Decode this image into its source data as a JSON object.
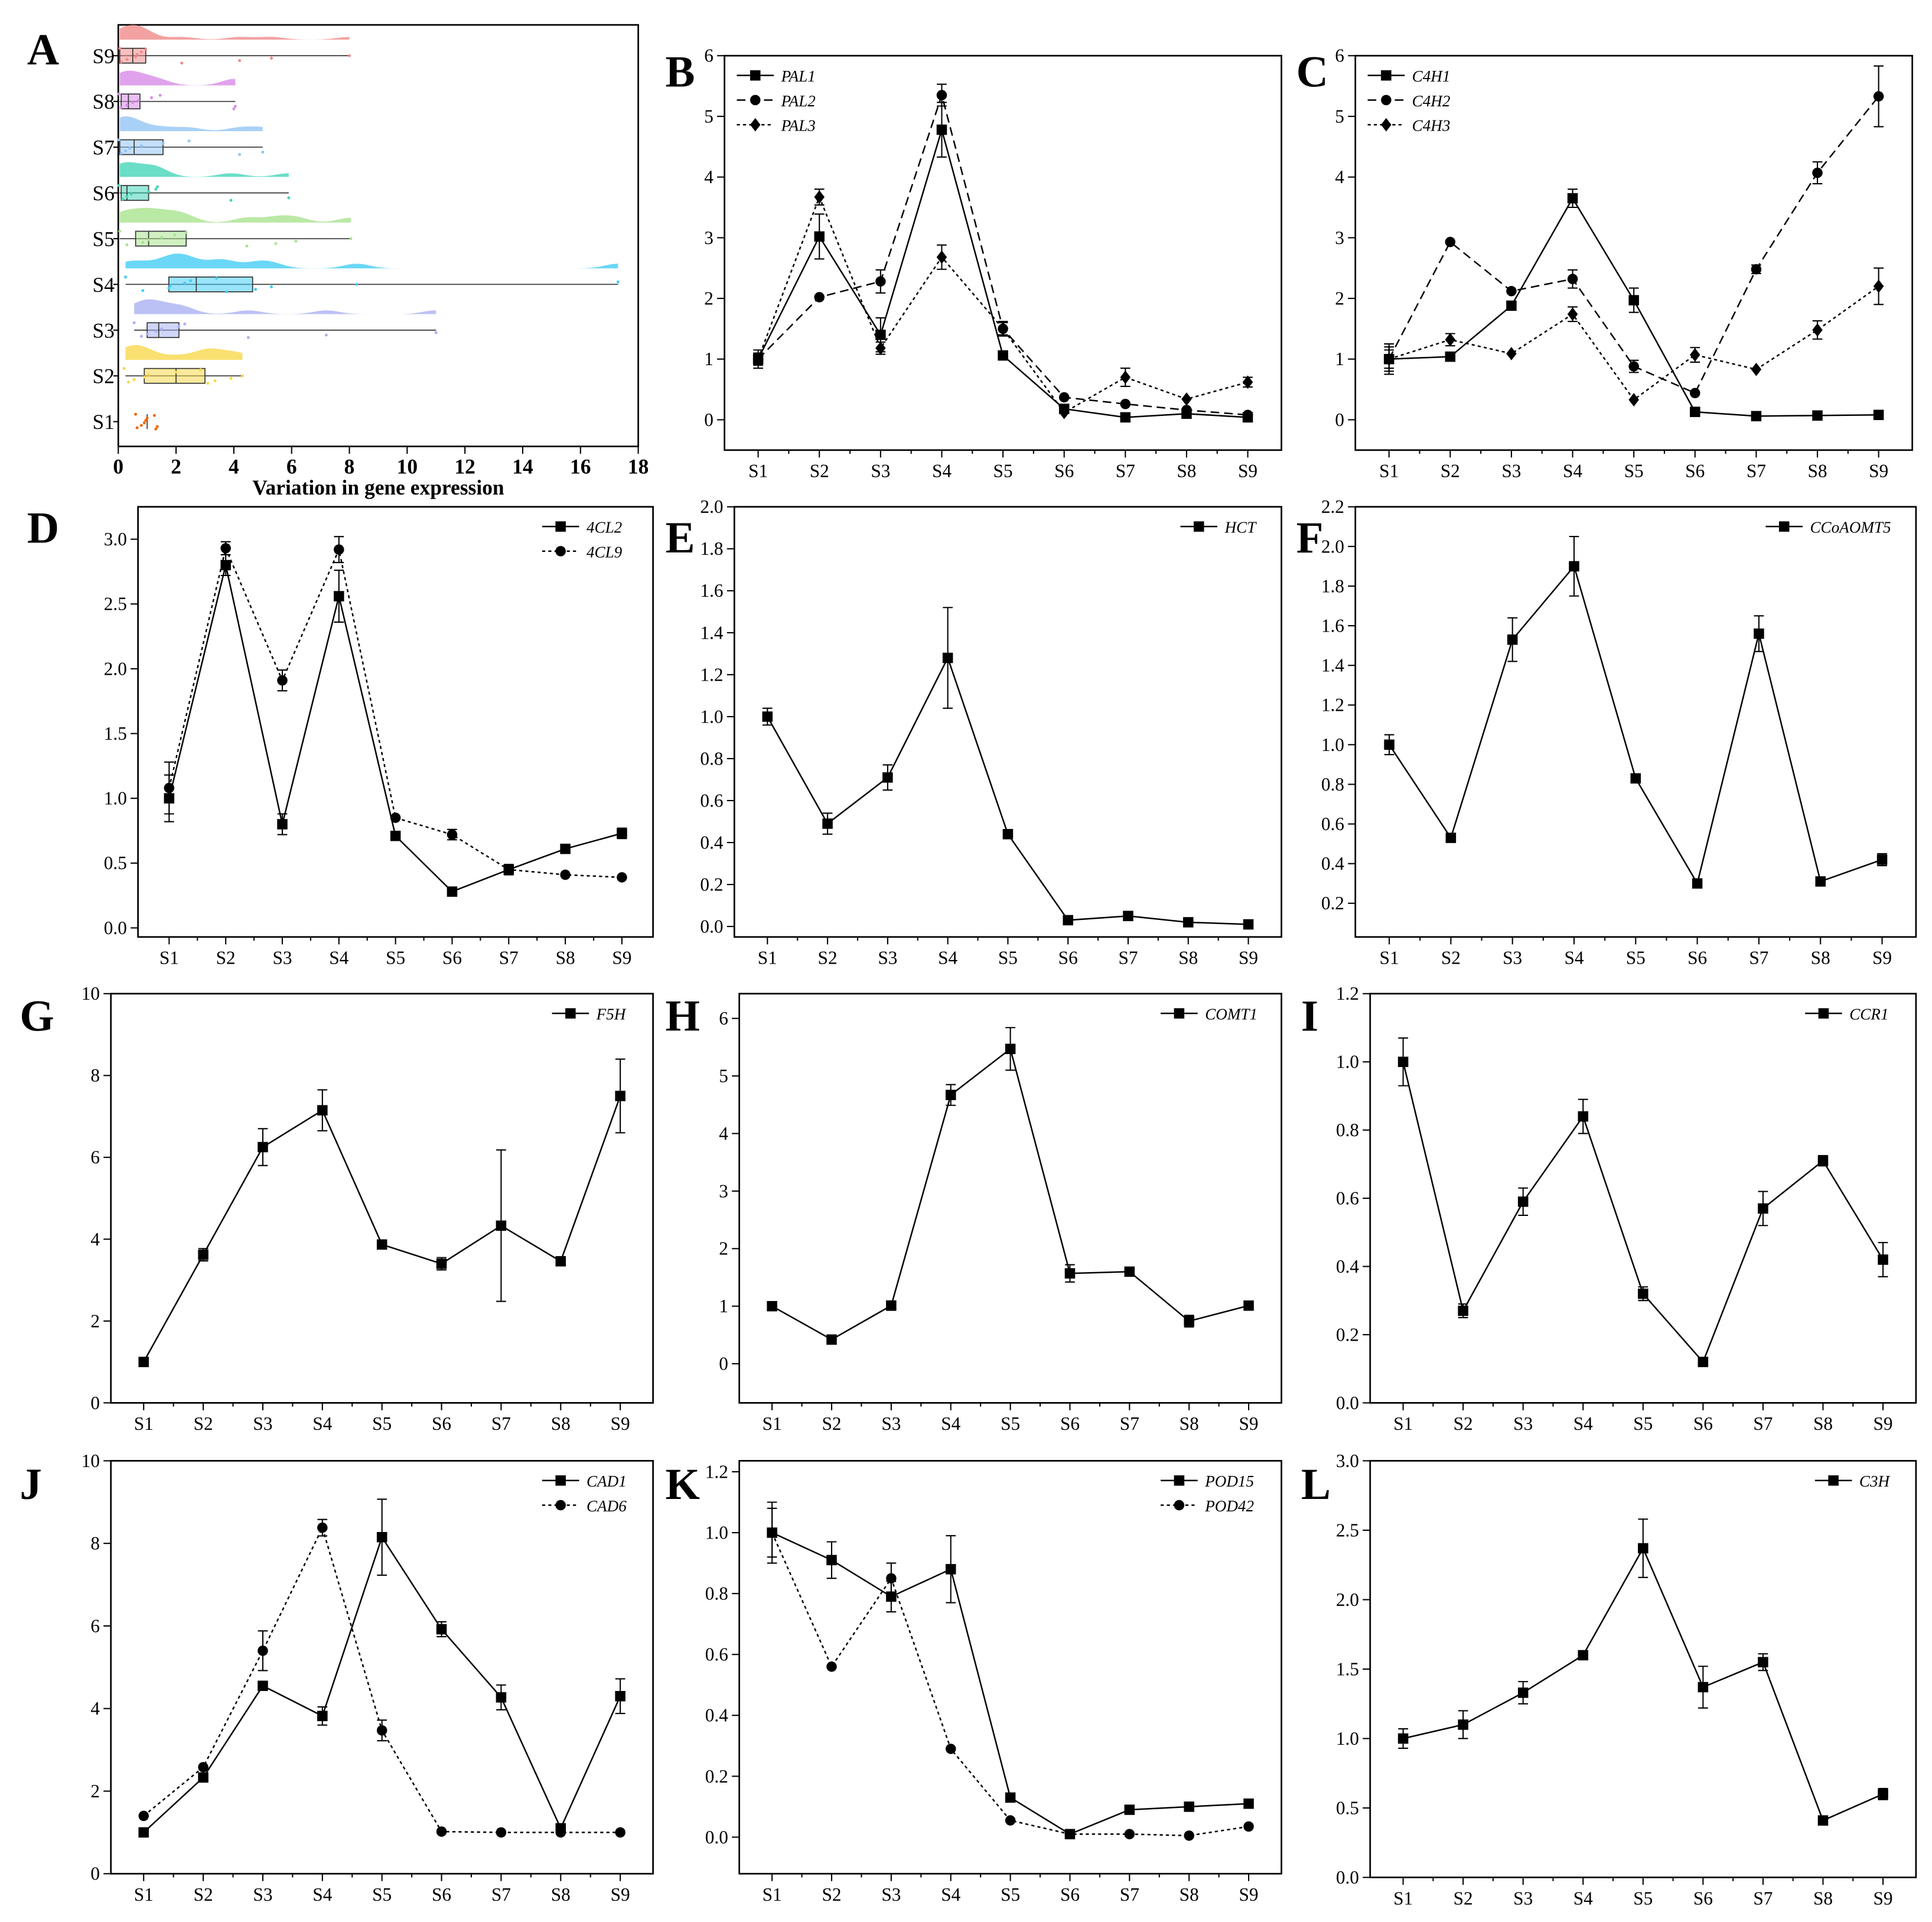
{
  "chart_data": [
    {
      "panel": "A",
      "type": "raincloud",
      "xlabel": "Variation in gene expression",
      "xlim": [
        0,
        18
      ],
      "xticks": [
        "0",
        "2",
        "4",
        "6",
        "8",
        "10",
        "12",
        "14",
        "16",
        "18"
      ],
      "categories": [
        "S9",
        "S8",
        "S7",
        "S6",
        "S5",
        "S4",
        "S3",
        "S2",
        "S1"
      ],
      "groups": [
        {
          "name": "S9",
          "color": "#f08a8a",
          "min": 0.05,
          "q1": 0.05,
          "median": 0.5,
          "q3": 0.95,
          "max": 8.0,
          "points": [
            0.05,
            0.1,
            0.3,
            0.6,
            0.65,
            0.8,
            0.95,
            2.2,
            4.2,
            5.3,
            8.0
          ]
        },
        {
          "name": "S8",
          "color": "#d98be8",
          "min": 0.05,
          "q1": 0.1,
          "median": 0.35,
          "q3": 0.75,
          "max": 4.05,
          "points": [
            0.02,
            0.1,
            0.3,
            0.5,
            0.7,
            1.15,
            1.45,
            4.0,
            4.05
          ]
        },
        {
          "name": "S7",
          "color": "#93c5f5",
          "min": 0.05,
          "q1": 0.05,
          "median": 0.55,
          "q3": 1.55,
          "max": 5.0,
          "points": [
            0.02,
            0.1,
            0.25,
            0.4,
            0.8,
            1.55,
            2.45,
            4.2,
            5.0
          ]
        },
        {
          "name": "S6",
          "color": "#45d6b8",
          "min": 0.05,
          "q1": 0.1,
          "median": 0.3,
          "q3": 1.05,
          "max": 5.9,
          "points": [
            0.02,
            0.15,
            0.3,
            0.45,
            1.05,
            1.3,
            1.35,
            3.9,
            5.9
          ]
        },
        {
          "name": "S5",
          "color": "#a9e38f",
          "min": 0.05,
          "q1": 0.6,
          "median": 1.05,
          "q3": 2.35,
          "max": 8.05,
          "points": [
            0.05,
            0.3,
            0.85,
            1.05,
            1.5,
            1.95,
            2.35,
            4.45,
            5.45,
            6.15,
            8.05
          ]
        },
        {
          "name": "S4",
          "color": "#45cdf5",
          "min": 0.25,
          "q1": 1.75,
          "median": 2.7,
          "q3": 4.65,
          "max": 17.3,
          "points": [
            0.25,
            0.85,
            1.75,
            1.8,
            2.3,
            2.5,
            3.4,
            3.75,
            4.75,
            5.3,
            8.25,
            17.3
          ]
        },
        {
          "name": "S3",
          "color": "#aab2f2",
          "min": 0.55,
          "q1": 1.0,
          "median": 1.4,
          "q3": 2.1,
          "max": 11.0,
          "points": [
            0.55,
            0.8,
            1.0,
            1.3,
            1.5,
            2.1,
            2.3,
            4.5,
            7.2,
            11.0
          ]
        },
        {
          "name": "S2",
          "color": "#f8d84c",
          "min": 0.25,
          "q1": 0.9,
          "median": 2.0,
          "q3": 3.0,
          "max": 4.3,
          "points": [
            0.2,
            0.35,
            0.55,
            0.9,
            1.05,
            2.0,
            2.85,
            3.1,
            3.35,
            3.9,
            4.3
          ]
        },
        {
          "name": "S1",
          "color": "#f06a10",
          "min": 0.6,
          "q1": 0.95,
          "median": 1.0,
          "q3": 1.0,
          "max": 1.35,
          "points": [
            0.6,
            0.65,
            0.8,
            0.9,
            0.95,
            1.0,
            1.25,
            1.3,
            1.35
          ]
        }
      ]
    },
    {
      "panel": "B",
      "type": "line",
      "legend": "top-left",
      "categories": [
        "S1",
        "S2",
        "S3",
        "S4",
        "S5",
        "S6",
        "S7",
        "S8",
        "S9"
      ],
      "ylim": [
        -0.5,
        6
      ],
      "yticks": [
        "0",
        "1",
        "2",
        "3",
        "4",
        "5",
        "6"
      ],
      "series": [
        {
          "name": "PAL1",
          "marker": "square",
          "line": "solid",
          "values": [
            1.0,
            3.02,
            1.4,
            4.78,
            1.06,
            0.18,
            0.04,
            0.1,
            0.04
          ],
          "errors": [
            0.15,
            0.37,
            0.28,
            0.45,
            0.05,
            0.03,
            0.02,
            0.02,
            0.02
          ]
        },
        {
          "name": "PAL2",
          "marker": "circle",
          "line": "dashed",
          "values": [
            1.0,
            2.02,
            2.28,
            5.35,
            1.5,
            0.37,
            0.26,
            0.16,
            0.08
          ],
          "errors": [
            0.1,
            0.05,
            0.19,
            0.18,
            0.1,
            0.03,
            0.03,
            0.02,
            0.02
          ]
        },
        {
          "name": "PAL3",
          "marker": "diamond",
          "line": "dotted",
          "values": [
            1.0,
            3.67,
            1.18,
            2.68,
            1.5,
            0.12,
            0.7,
            0.34,
            0.62
          ],
          "errors": [
            0.08,
            0.13,
            0.1,
            0.2,
            0.12,
            0.02,
            0.15,
            0.04,
            0.08
          ]
        }
      ]
    },
    {
      "panel": "C",
      "type": "line",
      "legend": "top-left",
      "categories": [
        "S1",
        "S2",
        "S3",
        "S4",
        "S5",
        "S6",
        "S7",
        "S8",
        "S9"
      ],
      "ylim": [
        -0.5,
        6
      ],
      "yticks": [
        "0",
        "1",
        "2",
        "3",
        "4",
        "5",
        "6"
      ],
      "series": [
        {
          "name": "C4H1",
          "marker": "square",
          "line": "solid",
          "values": [
            1.0,
            1.04,
            1.88,
            3.65,
            1.97,
            0.13,
            0.06,
            0.07,
            0.08
          ],
          "errors": [
            0.25,
            0.03,
            0.05,
            0.15,
            0.2,
            0.02,
            0.02,
            0.02,
            0.02
          ]
        },
        {
          "name": "C4H2",
          "marker": "circle",
          "line": "dashed",
          "values": [
            1.0,
            2.93,
            2.12,
            2.32,
            0.88,
            0.44,
            2.48,
            4.07,
            5.33
          ],
          "errors": [
            0.15,
            0.05,
            0.05,
            0.15,
            0.1,
            0.03,
            0.07,
            0.18,
            0.5
          ]
        },
        {
          "name": "C4H3",
          "marker": "diamond",
          "line": "dotted",
          "values": [
            1.0,
            1.32,
            1.09,
            1.74,
            0.33,
            1.07,
            0.83,
            1.48,
            2.2
          ],
          "errors": [
            0.2,
            0.1,
            0.05,
            0.12,
            0.03,
            0.12,
            0.04,
            0.15,
            0.3
          ]
        }
      ]
    },
    {
      "panel": "D",
      "type": "line",
      "legend": "top-right",
      "categories": [
        "S1",
        "S2",
        "S3",
        "S4",
        "S5",
        "S6",
        "S7",
        "S8",
        "S9"
      ],
      "ylim": [
        -0.07,
        3.25
      ],
      "yticks": [
        "0.0",
        "0.5",
        "1.0",
        "1.5",
        "2.0",
        "2.5",
        "3.0"
      ],
      "series": [
        {
          "name": "4CL2",
          "marker": "square",
          "line": "solid",
          "values": [
            1.0,
            2.8,
            0.8,
            2.56,
            0.71,
            0.28,
            0.45,
            0.61,
            0.73
          ],
          "errors": [
            0.18,
            0.08,
            0.08,
            0.2,
            0.03,
            0.02,
            0.04,
            0.02,
            0.04
          ]
        },
        {
          "name": "4CL9",
          "marker": "circle",
          "line": "dotted",
          "values": [
            1.08,
            2.93,
            1.91,
            2.92,
            0.85,
            0.72,
            0.45,
            0.41,
            0.39
          ],
          "errors": [
            0.2,
            0.05,
            0.08,
            0.1,
            0.02,
            0.04,
            0.03,
            0.02,
            0.01
          ]
        }
      ]
    },
    {
      "panel": "E",
      "type": "line",
      "legend": "top-right",
      "categories": [
        "S1",
        "S2",
        "S3",
        "S4",
        "S5",
        "S6",
        "S7",
        "S8",
        "S9"
      ],
      "ylim": [
        -0.05,
        2.0
      ],
      "yticks": [
        "0.0",
        "0.2",
        "0.4",
        "0.6",
        "0.8",
        "1.0",
        "1.2",
        "1.4",
        "1.6",
        "1.8",
        "2.0"
      ],
      "series": [
        {
          "name": "HCT",
          "marker": "square",
          "line": "solid",
          "values": [
            1.0,
            0.49,
            0.71,
            1.28,
            0.44,
            0.03,
            0.05,
            0.02,
            0.01
          ],
          "errors": [
            0.04,
            0.05,
            0.06,
            0.24,
            0.01,
            0.005,
            0.005,
            0.005,
            0.005
          ]
        }
      ]
    },
    {
      "panel": "F",
      "type": "line",
      "legend": "top-right",
      "categories": [
        "S1",
        "S2",
        "S3",
        "S4",
        "S5",
        "S6",
        "S7",
        "S8",
        "S9"
      ],
      "ylim": [
        0.03,
        2.2
      ],
      "yticks": [
        "0.2",
        "0.4",
        "0.6",
        "0.8",
        "1.0",
        "1.2",
        "1.4",
        "1.6",
        "1.8",
        "2.0",
        "2.2"
      ],
      "series": [
        {
          "name": "CCoAOMT5",
          "marker": "square",
          "line": "solid",
          "values": [
            1.0,
            0.53,
            1.53,
            1.9,
            0.83,
            0.3,
            1.56,
            0.31,
            0.42
          ],
          "errors": [
            0.05,
            0.01,
            0.11,
            0.15,
            0.01,
            0.01,
            0.09,
            0.01,
            0.03
          ]
        }
      ]
    },
    {
      "panel": "G",
      "type": "line",
      "legend": "top-right",
      "categories": [
        "S1",
        "S2",
        "S3",
        "S4",
        "S5",
        "S6",
        "S7",
        "S8",
        "S9"
      ],
      "ylim": [
        0,
        10
      ],
      "yticks": [
        "0",
        "2",
        "4",
        "6",
        "8",
        "10"
      ],
      "series": [
        {
          "name": "F5H",
          "marker": "square",
          "line": "solid",
          "values": [
            1.0,
            3.62,
            6.25,
            7.15,
            3.87,
            3.4,
            4.33,
            3.46,
            7.5
          ],
          "errors": [
            0.05,
            0.15,
            0.45,
            0.5,
            0.05,
            0.15,
            1.85,
            0.05,
            0.9
          ]
        }
      ]
    },
    {
      "panel": "H",
      "type": "line",
      "legend": "top-right",
      "categories": [
        "S1",
        "S2",
        "S3",
        "S4",
        "S5",
        "S6",
        "S7",
        "S8",
        "S9"
      ],
      "ylim": [
        -0.68,
        6.43
      ],
      "yticks": [
        "0",
        "1",
        "2",
        "3",
        "4",
        "5",
        "6"
      ],
      "series": [
        {
          "name": "COMT1",
          "marker": "square",
          "line": "solid",
          "values": [
            1.0,
            0.42,
            1.01,
            4.67,
            5.47,
            1.57,
            1.6,
            0.74,
            1.01
          ],
          "errors": [
            0.03,
            0.03,
            0.08,
            0.18,
            0.37,
            0.15,
            0.03,
            0.1,
            0.03
          ]
        }
      ]
    },
    {
      "panel": "I",
      "type": "line",
      "legend": "top-right",
      "categories": [
        "S1",
        "S2",
        "S3",
        "S4",
        "S5",
        "S6",
        "S7",
        "S8",
        "S9"
      ],
      "ylim": [
        0,
        1.2
      ],
      "yticks": [
        "0.0",
        "0.2",
        "0.4",
        "0.6",
        "0.8",
        "1.0",
        "1.2"
      ],
      "series": [
        {
          "name": "CCR1",
          "marker": "square",
          "line": "solid",
          "values": [
            1.0,
            0.27,
            0.59,
            0.84,
            0.32,
            0.12,
            0.57,
            0.71,
            0.42
          ],
          "errors": [
            0.07,
            0.02,
            0.04,
            0.05,
            0.02,
            0.005,
            0.05,
            0.015,
            0.05
          ]
        }
      ]
    },
    {
      "panel": "J",
      "type": "line",
      "legend": "top-right",
      "categories": [
        "S1",
        "S2",
        "S3",
        "S4",
        "S5",
        "S6",
        "S7",
        "S8",
        "S9"
      ],
      "ylim": [
        0,
        10
      ],
      "yticks": [
        "0",
        "2",
        "4",
        "6",
        "8",
        "10"
      ],
      "series": [
        {
          "name": "CAD1",
          "marker": "square",
          "line": "solid",
          "values": [
            1.0,
            2.33,
            4.55,
            3.82,
            8.15,
            5.92,
            4.27,
            1.1,
            4.3
          ],
          "errors": [
            0.05,
            0.1,
            0.05,
            0.22,
            0.92,
            0.18,
            0.3,
            0.1,
            0.42
          ]
        },
        {
          "name": "CAD6",
          "marker": "circle",
          "line": "dotted",
          "values": [
            1.4,
            2.58,
            5.4,
            8.38,
            3.47,
            1.02,
            1.0,
            1.0,
            1.0
          ],
          "errors": [
            0.05,
            0.05,
            0.48,
            0.2,
            0.25,
            0.02,
            0.02,
            0.02,
            0.02
          ]
        }
      ]
    },
    {
      "panel": "K",
      "type": "line",
      "legend": "top-right",
      "categories": [
        "S1",
        "S2",
        "S3",
        "S4",
        "S5",
        "S6",
        "S7",
        "S8",
        "S9"
      ],
      "ylim": [
        -0.12,
        1.236
      ],
      "yticks": [
        "0.0",
        "0.2",
        "0.4",
        "0.6",
        "0.8",
        "1.0",
        "1.2"
      ],
      "series": [
        {
          "name": "POD15",
          "marker": "square",
          "line": "solid",
          "values": [
            1.0,
            0.91,
            0.79,
            0.88,
            0.13,
            0.01,
            0.09,
            0.1,
            0.11
          ],
          "errors": [
            0.1,
            0.06,
            0.05,
            0.11,
            0.01,
            0.005,
            0.01,
            0.005,
            0.01
          ]
        },
        {
          "name": "POD42",
          "marker": "circle",
          "line": "dotted",
          "values": [
            1.0,
            0.56,
            0.85,
            0.29,
            0.055,
            0.01,
            0.01,
            0.005,
            0.035
          ],
          "errors": [
            0.08,
            0.01,
            0.05,
            0.01,
            0.005,
            0.005,
            0.005,
            0.005,
            0.005
          ]
        }
      ]
    },
    {
      "panel": "L",
      "type": "line",
      "legend": "top-right",
      "categories": [
        "S1",
        "S2",
        "S3",
        "S4",
        "S5",
        "S6",
        "S7",
        "S8",
        "S9"
      ],
      "ylim": [
        0,
        3.0
      ],
      "yticks": [
        "0.0",
        "0.5",
        "1.0",
        "1.5",
        "2.0",
        "2.5",
        "3.0"
      ],
      "series": [
        {
          "name": "C3H",
          "marker": "square",
          "line": "solid",
          "values": [
            1.0,
            1.1,
            1.33,
            1.6,
            2.37,
            1.37,
            1.55,
            0.41,
            0.6
          ],
          "errors": [
            0.07,
            0.1,
            0.08,
            0.02,
            0.21,
            0.15,
            0.06,
            0.03,
            0.04
          ]
        }
      ]
    }
  ]
}
